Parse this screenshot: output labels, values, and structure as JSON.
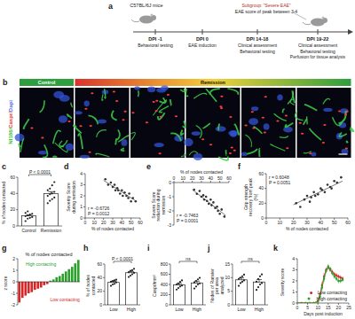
{
  "schematic": {
    "label": "a",
    "subject": "C57BL/6J mice",
    "steps": [
      {
        "time": "DPI -1",
        "tasks": [
          "Behavioral testing"
        ]
      },
      {
        "time": "DPI 0",
        "tasks": [
          "EAE induction"
        ]
      },
      {
        "time": "DPI 14-18",
        "tasks": [
          "Clinical assessment",
          "Behavioral testing"
        ]
      },
      {
        "time": "DPI 19-22",
        "tasks": [
          "Clinical assessment",
          "Behavioral testing",
          "Perfusion for tissue analysis"
        ]
      }
    ],
    "subgroup": [
      "Subgroup: \"Severe EAE\"",
      "EAE score of peak between 3-4"
    ]
  },
  "micrographs": {
    "label": "b",
    "groups": [
      {
        "name": "Control",
        "tiles": 1
      },
      {
        "name": "Remission",
        "tiles": 5
      }
    ],
    "stain": [
      {
        "text": "Nf186/",
        "color": "#3ec43e"
      },
      {
        "text": "Caspr/",
        "color": "#e23a3a"
      },
      {
        "text": "Dapi",
        "color": "#4a6cf0"
      }
    ]
  },
  "chart_data": [
    {
      "label": "c",
      "type": "bar",
      "ylabel": "% of nodes contacted",
      "categories": [
        "Control",
        "Remission"
      ],
      "values": [
        12.4,
        39.9
      ],
      "errors": [
        1.2,
        2.3
      ],
      "points": [
        [
          6,
          9,
          10,
          11,
          12,
          13,
          14,
          15,
          16,
          18
        ],
        [
          28,
          31,
          33,
          35,
          37,
          39,
          40,
          42,
          44,
          46,
          50,
          54
        ]
      ],
      "color": "#ffffff",
      "annotation": "P < 0.0001",
      "ylim": [
        0,
        60
      ],
      "yticks": [
        0,
        20,
        40,
        60
      ]
    },
    {
      "label": "d",
      "type": "scatter",
      "xlabel": "% of nodes contacted",
      "ylabel": "Severity Score during remission",
      "x": [
        22,
        25,
        28,
        30,
        32,
        33,
        35,
        36,
        38,
        40,
        41,
        43,
        45,
        47,
        48,
        50,
        52,
        55
      ],
      "values": [
        3.5,
        3.0,
        3.2,
        2.8,
        3.0,
        2.5,
        2.7,
        2.5,
        2.2,
        2.5,
        2.0,
        2.3,
        2.0,
        1.8,
        2.2,
        1.5,
        1.8,
        1.5
      ],
      "fit": {
        "x": [
          20,
          56
        ],
        "values": [
          3.4,
          1.5
        ]
      },
      "annotations": [
        "r = -0.6726",
        "P = 0.0012"
      ],
      "xlim": [
        0,
        60
      ],
      "xticks": [
        0,
        10,
        20,
        30,
        40,
        50,
        60
      ],
      "ylim": [
        0,
        4
      ],
      "yticks": [
        0,
        1,
        2,
        3,
        4
      ]
    },
    {
      "label": "e",
      "type": "scatter",
      "xlabel": "% of nodes contacted",
      "ylabel": "Severe Score reduction during remission",
      "x": [
        22,
        25,
        28,
        30,
        32,
        33,
        35,
        36,
        38,
        40,
        41,
        43,
        45,
        47,
        48,
        50,
        52,
        55
      ],
      "values": [
        -0.5,
        -0.8,
        -0.6,
        -1.0,
        -0.9,
        -1.2,
        -1.0,
        -1.3,
        -1.5,
        -1.2,
        -1.6,
        -1.4,
        -1.8,
        -1.7,
        -2.0,
        -2.2,
        -1.9,
        -2.4
      ],
      "fit": {
        "x": [
          20,
          56
        ],
        "values": [
          -0.5,
          -2.3
        ]
      },
      "annotations": [
        "r = -0.7463",
        "P = 0.0001"
      ],
      "xlim": [
        0,
        60
      ],
      "xticks": [
        0,
        10,
        20,
        30,
        40,
        50,
        60
      ],
      "ylim": [
        -3,
        0
      ],
      "yticks": [
        -3,
        -2,
        -1,
        0
      ]
    },
    {
      "label": "f",
      "type": "scatter",
      "xlabel": "% of nodes contacted",
      "ylabel": "Grip strength recovery from peak (%)",
      "x": [
        22,
        25,
        28,
        30,
        32,
        33,
        35,
        36,
        38,
        40,
        41,
        43,
        45,
        47,
        48,
        50,
        52,
        55
      ],
      "values": [
        20,
        15,
        25,
        30,
        22,
        28,
        35,
        30,
        32,
        40,
        38,
        35,
        45,
        42,
        40,
        50,
        48,
        55
      ],
      "fit": {
        "x": [
          20,
          56
        ],
        "values": [
          18,
          50
        ]
      },
      "annotations": [
        "r = 0.6048",
        "P = 0.0051"
      ],
      "xlim": [
        0,
        60
      ],
      "xticks": [
        0,
        10,
        20,
        30,
        40,
        50,
        60
      ],
      "ylim": [
        0,
        60
      ],
      "yticks": [
        0,
        20,
        40,
        60
      ]
    },
    {
      "label": "g",
      "type": "bar",
      "title": "% of nodes contacted",
      "ylabel": "z score",
      "categories": [
        null,
        null,
        null,
        null,
        null,
        null,
        null,
        null,
        null,
        null,
        null,
        null,
        null,
        null,
        null,
        null,
        null,
        null,
        null,
        null
      ],
      "values": [
        -1.8,
        -1.4,
        -1.2,
        -1.0,
        -0.9,
        -0.7,
        -0.6,
        -0.5,
        -0.3,
        -0.2,
        0.1,
        0.2,
        0.4,
        0.5,
        0.7,
        0.9,
        1.1,
        1.3,
        1.6,
        1.9
      ],
      "colors": [
        "#d62728",
        "#d62728",
        "#d62728",
        "#d62728",
        "#d62728",
        "#d62728",
        "#d62728",
        "#d62728",
        "#d62728",
        "#d62728",
        "#2ca02c",
        "#2ca02c",
        "#2ca02c",
        "#2ca02c",
        "#2ca02c",
        "#2ca02c",
        "#2ca02c",
        "#2ca02c",
        "#2ca02c",
        "#2ca02c"
      ],
      "annotations": [
        {
          "text": "Low contacting",
          "color": "#d62728"
        },
        {
          "text": "High contacting",
          "color": "#2ca02c"
        }
      ],
      "ylim": [
        -2,
        2
      ],
      "yticks": [
        -2,
        -1,
        0,
        1,
        2
      ],
      "tick_labels": "y"
    },
    {
      "label": "h",
      "type": "bar",
      "ylabel": "% of nodes contacted",
      "categories": [
        "Low",
        "High"
      ],
      "values": [
        33,
        47.25
      ],
      "errors": [
        1.5,
        1.8
      ],
      "points": [
        [
          28,
          30,
          31,
          33,
          34,
          35,
          36,
          37
        ],
        [
          41,
          43,
          45,
          47,
          48,
          50,
          51,
          53
        ]
      ],
      "color": "#ffffff",
      "annotation": "P < 0.0001",
      "ylim": [
        0,
        60
      ],
      "yticks": [
        0,
        20,
        40,
        60
      ]
    },
    {
      "label": "i",
      "type": "bar",
      "ylabel": "Caspr/mm²",
      "categories": [
        "Low",
        "High"
      ],
      "values": [
        390,
        430
      ],
      "errors": [
        30,
        35
      ],
      "points": [
        [
          300,
          330,
          360,
          380,
          400,
          420,
          450,
          480
        ],
        [
          320,
          360,
          400,
          420,
          440,
          470,
          500,
          530
        ]
      ],
      "color": "#ffffff",
      "annotation": "ns",
      "ylim": [
        0,
        800
      ],
      "yticks": [
        0,
        200,
        400,
        600,
        800
      ]
    },
    {
      "label": "j",
      "type": "bar",
      "ylabel": "Nodes of Ranvier per area analyzed",
      "categories": [
        "Low",
        "High"
      ],
      "values": [
        9.2,
        8.4
      ],
      "errors": [
        0.7,
        0.9
      ],
      "points": [
        [
          7,
          8,
          8.5,
          9,
          9.5,
          10,
          10.5,
          11.1
        ],
        [
          5.5,
          6.5,
          7.5,
          8,
          8.5,
          9.5,
          10.5,
          11.2
        ]
      ],
      "color": "#ffffff",
      "annotation": "ns",
      "ylim": [
        0,
        15
      ],
      "yticks": [
        0,
        5,
        10,
        15
      ]
    },
    {
      "label": "k",
      "type": "line",
      "xlabel": "Days post induction",
      "ylabel": "Severity score",
      "x": [
        0,
        2,
        4,
        6,
        8,
        10,
        11,
        12,
        13,
        14,
        15,
        16,
        17,
        18,
        19,
        20,
        21,
        22
      ],
      "series": [
        {
          "name": "Low contacting",
          "color": "#d62728",
          "marker": "circle",
          "values": [
            0,
            0,
            0,
            0,
            0,
            0.2,
            0.8,
            1.6,
            2.4,
            3.0,
            3.2,
            3.0,
            2.8,
            2.6,
            2.5,
            2.4,
            2.3,
            2.2
          ],
          "errors": [
            0,
            0,
            0,
            0,
            0,
            0.1,
            0.2,
            0.3,
            0.3,
            0.2,
            0.2,
            0.2,
            0.2,
            0.2,
            0.2,
            0.2,
            0.2,
            0.2
          ]
        },
        {
          "name": "High contacting",
          "color": "#2ca02c",
          "marker": "circle",
          "values": [
            0,
            0,
            0,
            0,
            0,
            0.1,
            0.6,
            1.4,
            2.2,
            2.9,
            3.3,
            3.1,
            2.7,
            2.4,
            2.2,
            2.0,
            2.0,
            2.1
          ],
          "errors": [
            0,
            0,
            0,
            0,
            0,
            0.1,
            0.2,
            0.3,
            0.3,
            0.2,
            0.2,
            0.2,
            0.2,
            0.2,
            0.2,
            0.2,
            0.2,
            0.2
          ]
        }
      ],
      "legend": "lower right",
      "xlim": [
        0,
        25
      ],
      "xticks": [
        0,
        5,
        10,
        15,
        20,
        25
      ],
      "ylim": [
        0,
        4
      ],
      "yticks": [
        0,
        1,
        2,
        3,
        4
      ]
    }
  ]
}
